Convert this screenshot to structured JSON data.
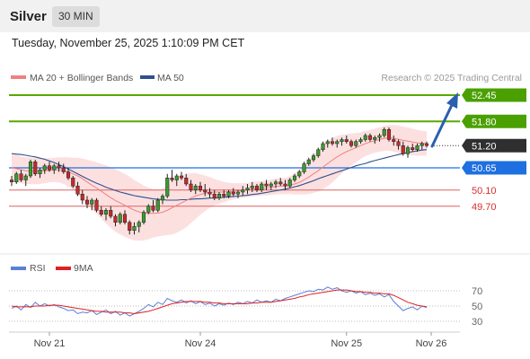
{
  "header": {
    "instrument": "Silver",
    "timeframe": "30 MIN",
    "datetime": "Tuesday, November 25, 2025 1:10:09 PM CET"
  },
  "chart_data": {
    "type": "candlestick",
    "legend": [
      {
        "label": "MA 20 + Bollinger Bands",
        "color": "#f08080"
      },
      {
        "label": "MA 50",
        "color": "#2f4f8f"
      }
    ],
    "copyright": "Research © 2025 Trading Central",
    "price_range": [
      48.9,
      53.1
    ],
    "x_ticks": [
      "Nov 21",
      "Nov 24",
      "Nov 25",
      "Nov 26"
    ],
    "levels": [
      {
        "value": "52.45",
        "type": "resistance",
        "line_color": "#5aa800",
        "box_color": "#4aa000",
        "text_color": "#ffffff"
      },
      {
        "value": "51.80",
        "type": "resistance",
        "line_color": "#5aa800",
        "box_color": "#4aa000",
        "text_color": "#ffffff"
      },
      {
        "value": "51.20",
        "type": "last",
        "line_color": "#555555",
        "box_color": "#2f2f2f",
        "text_color": "#ffffff"
      },
      {
        "value": "50.65",
        "type": "pivot",
        "line_color": "#1e6fe0",
        "box_color": "#1e6fe0",
        "text_color": "#ffffff"
      },
      {
        "value": "50.10",
        "type": "support",
        "line_color": "#e06060",
        "box_color": "none",
        "text_color": "#d83030"
      },
      {
        "value": "49.70",
        "type": "support",
        "line_color": "#e06060",
        "box_color": "none",
        "text_color": "#d83030"
      }
    ],
    "candles": [
      [
        50.35,
        50.45,
        50.2,
        50.3
      ],
      [
        50.3,
        50.55,
        50.25,
        50.5
      ],
      [
        50.5,
        50.6,
        50.3,
        50.35
      ],
      [
        50.35,
        50.5,
        50.2,
        50.45
      ],
      [
        50.45,
        50.85,
        50.4,
        50.8
      ],
      [
        50.8,
        50.85,
        50.45,
        50.5
      ],
      [
        50.5,
        50.65,
        50.4,
        50.6
      ],
      [
        50.6,
        50.75,
        50.5,
        50.7
      ],
      [
        50.7,
        50.8,
        50.55,
        50.6
      ],
      [
        50.6,
        50.75,
        50.5,
        50.7
      ],
      [
        50.7,
        50.8,
        50.55,
        50.65
      ],
      [
        50.65,
        50.75,
        50.5,
        50.55
      ],
      [
        50.55,
        50.65,
        50.35,
        50.4
      ],
      [
        50.4,
        50.45,
        50.15,
        50.2
      ],
      [
        50.2,
        50.3,
        49.95,
        50.0
      ],
      [
        50.0,
        50.1,
        49.75,
        49.85
      ],
      [
        49.85,
        49.95,
        49.65,
        49.75
      ],
      [
        49.75,
        49.9,
        49.6,
        49.85
      ],
      [
        49.85,
        49.9,
        49.55,
        49.6
      ],
      [
        49.6,
        49.7,
        49.45,
        49.5
      ],
      [
        49.5,
        49.65,
        49.35,
        49.6
      ],
      [
        49.6,
        49.7,
        49.4,
        49.45
      ],
      [
        49.45,
        49.5,
        49.2,
        49.3
      ],
      [
        49.3,
        49.55,
        49.25,
        49.5
      ],
      [
        49.5,
        49.6,
        49.25,
        49.3
      ],
      [
        49.3,
        49.35,
        49.0,
        49.1
      ],
      [
        49.1,
        49.3,
        49.0,
        49.2
      ],
      [
        49.2,
        49.35,
        49.05,
        49.3
      ],
      [
        49.3,
        49.6,
        49.25,
        49.55
      ],
      [
        49.55,
        49.75,
        49.5,
        49.7
      ],
      [
        49.7,
        49.85,
        49.55,
        49.6
      ],
      [
        49.6,
        49.9,
        49.55,
        49.85
      ],
      [
        49.85,
        50.0,
        49.75,
        49.95
      ],
      [
        49.95,
        50.5,
        49.9,
        50.4
      ],
      [
        50.4,
        50.6,
        50.3,
        50.35
      ],
      [
        50.35,
        50.5,
        50.2,
        50.45
      ],
      [
        50.45,
        50.55,
        50.35,
        50.4
      ],
      [
        50.4,
        50.5,
        50.2,
        50.25
      ],
      [
        50.25,
        50.35,
        50.05,
        50.1
      ],
      [
        50.1,
        50.25,
        50.0,
        50.2
      ],
      [
        50.2,
        50.3,
        50.05,
        50.1
      ],
      [
        50.1,
        50.25,
        49.95,
        50.05
      ],
      [
        50.05,
        50.15,
        49.9,
        50.0
      ],
      [
        50.0,
        50.1,
        49.85,
        49.9
      ],
      [
        49.9,
        50.05,
        49.85,
        50.0
      ],
      [
        50.0,
        50.1,
        49.9,
        49.95
      ],
      [
        49.95,
        50.1,
        49.9,
        50.05
      ],
      [
        50.05,
        50.15,
        49.95,
        50.0
      ],
      [
        50.0,
        50.1,
        49.9,
        50.05
      ],
      [
        50.05,
        50.2,
        49.95,
        50.1
      ],
      [
        50.1,
        50.25,
        50.0,
        50.15
      ],
      [
        50.15,
        50.3,
        50.05,
        50.2
      ],
      [
        50.2,
        50.25,
        50.05,
        50.1
      ],
      [
        50.1,
        50.3,
        50.05,
        50.25
      ],
      [
        50.25,
        50.35,
        50.1,
        50.2
      ],
      [
        50.2,
        50.3,
        50.1,
        50.25
      ],
      [
        50.25,
        50.35,
        50.15,
        50.3
      ],
      [
        50.3,
        50.4,
        50.2,
        50.25
      ],
      [
        50.25,
        50.35,
        50.1,
        50.2
      ],
      [
        50.2,
        50.4,
        50.15,
        50.35
      ],
      [
        50.35,
        50.5,
        50.3,
        50.45
      ],
      [
        50.45,
        50.6,
        50.4,
        50.55
      ],
      [
        50.55,
        50.8,
        50.5,
        50.75
      ],
      [
        50.75,
        50.9,
        50.7,
        50.85
      ],
      [
        50.85,
        51.0,
        50.8,
        50.95
      ],
      [
        50.95,
        51.15,
        50.9,
        51.1
      ],
      [
        51.1,
        51.3,
        51.05,
        51.25
      ],
      [
        51.25,
        51.35,
        51.15,
        51.3
      ],
      [
        51.3,
        51.4,
        51.2,
        51.25
      ],
      [
        51.25,
        51.35,
        51.15,
        51.3
      ],
      [
        51.3,
        51.4,
        51.2,
        51.35
      ],
      [
        51.35,
        51.45,
        51.25,
        51.3
      ],
      [
        51.3,
        51.35,
        51.15,
        51.2
      ],
      [
        51.2,
        51.35,
        51.15,
        51.3
      ],
      [
        51.3,
        51.4,
        51.25,
        51.35
      ],
      [
        51.35,
        51.5,
        51.3,
        51.45
      ],
      [
        51.45,
        51.5,
        51.3,
        51.35
      ],
      [
        51.35,
        51.45,
        51.25,
        51.4
      ],
      [
        51.4,
        51.5,
        51.3,
        51.45
      ],
      [
        51.45,
        51.65,
        51.4,
        51.6
      ],
      [
        51.6,
        51.65,
        51.3,
        51.35
      ],
      [
        51.35,
        51.45,
        51.2,
        51.3
      ],
      [
        51.3,
        51.35,
        51.1,
        51.2
      ],
      [
        51.2,
        51.3,
        50.95,
        51.0
      ],
      [
        51.0,
        51.2,
        50.9,
        51.15
      ],
      [
        51.15,
        51.25,
        51.05,
        51.1
      ],
      [
        51.1,
        51.25,
        51.05,
        51.2
      ],
      [
        51.2,
        51.3,
        51.1,
        51.25
      ],
      [
        51.25,
        51.3,
        51.15,
        51.2
      ]
    ],
    "ma20": [
      50.65,
      50.63,
      50.6,
      50.58,
      50.57,
      50.57,
      50.57,
      50.58,
      50.59,
      50.6,
      50.6,
      50.58,
      50.55,
      50.5,
      50.45,
      50.38,
      50.3,
      50.22,
      50.15,
      50.07,
      49.99,
      49.91,
      49.84,
      49.78,
      49.72,
      49.66,
      49.6,
      49.56,
      49.53,
      49.52,
      49.52,
      49.53,
      49.55,
      49.6,
      49.66,
      49.72,
      49.78,
      49.84,
      49.9,
      49.95,
      49.99,
      50.02,
      50.04,
      50.05,
      50.05,
      50.05,
      50.06,
      50.07,
      50.08,
      50.09,
      50.1,
      50.12,
      50.13,
      50.14,
      50.15,
      50.17,
      50.19,
      50.2,
      50.2,
      50.22,
      50.25,
      50.29,
      50.35,
      50.42,
      50.5,
      50.58,
      50.67,
      50.76,
      50.84,
      50.92,
      50.99,
      51.05,
      51.1,
      51.15,
      51.2,
      51.25,
      51.29,
      51.32,
      51.35,
      51.38,
      51.39,
      51.38,
      51.36,
      51.33,
      51.31,
      51.29,
      51.27,
      51.26,
      51.25
    ],
    "bb_width": [
      0.35,
      0.34,
      0.33,
      0.33,
      0.33,
      0.33,
      0.32,
      0.31,
      0.3,
      0.3,
      0.31,
      0.33,
      0.36,
      0.4,
      0.45,
      0.5,
      0.55,
      0.6,
      0.64,
      0.68,
      0.72,
      0.75,
      0.77,
      0.78,
      0.78,
      0.77,
      0.75,
      0.72,
      0.68,
      0.64,
      0.6,
      0.58,
      0.58,
      0.62,
      0.66,
      0.68,
      0.68,
      0.66,
      0.62,
      0.57,
      0.5,
      0.44,
      0.38,
      0.33,
      0.29,
      0.25,
      0.22,
      0.2,
      0.19,
      0.18,
      0.18,
      0.18,
      0.18,
      0.18,
      0.18,
      0.19,
      0.2,
      0.2,
      0.2,
      0.22,
      0.26,
      0.3,
      0.36,
      0.42,
      0.47,
      0.52,
      0.55,
      0.56,
      0.55,
      0.52,
      0.48,
      0.44,
      0.4,
      0.36,
      0.33,
      0.31,
      0.3,
      0.3,
      0.3,
      0.31,
      0.32,
      0.33,
      0.34,
      0.34,
      0.34,
      0.33,
      0.32,
      0.31,
      0.3
    ],
    "ma50": [
      51.0,
      50.99,
      50.98,
      50.96,
      50.94,
      50.92,
      50.89,
      50.86,
      50.82,
      50.78,
      50.73,
      50.68,
      50.62,
      50.56,
      50.5,
      50.44,
      50.38,
      50.32,
      50.27,
      50.22,
      50.17,
      50.13,
      50.09,
      50.05,
      50.02,
      49.99,
      49.96,
      49.94,
      49.92,
      49.9,
      49.88,
      49.87,
      49.86,
      49.85,
      49.85,
      49.85,
      49.86,
      49.86,
      49.87,
      49.88,
      49.88,
      49.89,
      49.9,
      49.9,
      49.91,
      49.92,
      49.93,
      49.94,
      49.95,
      49.96,
      49.97,
      49.99,
      50.0,
      50.02,
      50.04,
      50.06,
      50.08,
      50.1,
      50.12,
      50.15,
      50.18,
      50.21,
      50.25,
      50.29,
      50.33,
      50.38,
      50.42,
      50.46,
      50.5,
      50.54,
      50.58,
      50.62,
      50.66,
      50.7,
      50.73,
      50.76,
      50.8,
      50.83,
      50.86,
      50.89,
      50.92,
      50.95,
      50.98,
      51.0,
      51.03,
      51.05,
      51.07,
      51.09,
      51.1
    ],
    "rsi": {
      "legend": [
        {
          "label": "RSI",
          "color": "#5a7fd6"
        },
        {
          "label": "9MA",
          "color": "#e02020"
        }
      ],
      "y_ticks": [
        "70",
        "50",
        "30"
      ],
      "rsi_values": [
        47,
        50,
        45,
        52,
        48,
        55,
        50,
        53,
        50,
        52,
        49,
        47,
        44,
        45,
        40,
        42,
        41,
        44,
        39,
        42,
        45,
        40,
        43,
        38,
        41,
        37,
        40,
        43,
        47,
        52,
        49,
        55,
        52,
        60,
        57,
        55,
        58,
        54,
        57,
        53,
        56,
        52,
        54,
        50,
        53,
        51,
        54,
        52,
        55,
        53,
        56,
        54,
        58,
        55,
        57,
        55,
        59,
        57,
        60,
        62,
        64,
        66,
        68,
        70,
        69,
        72,
        71,
        75,
        72,
        74,
        70,
        68,
        70,
        67,
        69,
        65,
        67,
        64,
        66,
        62,
        65,
        56,
        50,
        44,
        47,
        49,
        45,
        50,
        48
      ],
      "ma_values": [
        50,
        49,
        49,
        49,
        49,
        50,
        50,
        50,
        51,
        51,
        51,
        50,
        49,
        48,
        47,
        46,
        45,
        44,
        43,
        43,
        42,
        42,
        42,
        42,
        41,
        41,
        40,
        41,
        42,
        43,
        45,
        47,
        49,
        51,
        53,
        54,
        55,
        56,
        56,
        56,
        56,
        55,
        55,
        54,
        54,
        53,
        53,
        53,
        53,
        53,
        53,
        54,
        54,
        55,
        55,
        55,
        56,
        57,
        58,
        59,
        60,
        62,
        63,
        65,
        66,
        67,
        68,
        69,
        70,
        71,
        71,
        71,
        70,
        69,
        69,
        68,
        68,
        67,
        67,
        66,
        66,
        64,
        61,
        58,
        55,
        53,
        51,
        50,
        49
      ]
    }
  }
}
